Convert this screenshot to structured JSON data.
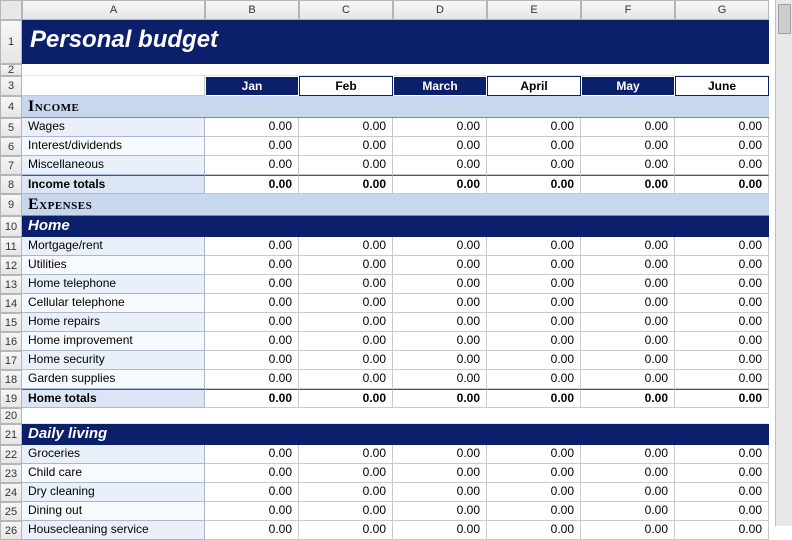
{
  "title": "Personal budget",
  "columns_letters": [
    "A",
    "B",
    "C",
    "D",
    "E",
    "F",
    "G"
  ],
  "months": [
    "Jan",
    "Feb",
    "March",
    "April",
    "May",
    "June"
  ],
  "month_alt_pattern": [
    false,
    true,
    false,
    true,
    false,
    true
  ],
  "colors": {
    "dark_blue": "#0b1f6b",
    "section_blue": "#c7d7ee",
    "label_odd": "#eaf0fa",
    "label_even": "#f6f9fe"
  },
  "sections": {
    "income": {
      "header": "Income",
      "rows": [
        {
          "n": 5,
          "label": "Wages",
          "vals": [
            "0.00",
            "0.00",
            "0.00",
            "0.00",
            "0.00",
            "0.00"
          ]
        },
        {
          "n": 6,
          "label": "Interest/dividends",
          "vals": [
            "0.00",
            "0.00",
            "0.00",
            "0.00",
            "0.00",
            "0.00"
          ]
        },
        {
          "n": 7,
          "label": "Miscellaneous",
          "vals": [
            "0.00",
            "0.00",
            "0.00",
            "0.00",
            "0.00",
            "0.00"
          ]
        }
      ],
      "total": {
        "n": 8,
        "label": "Income totals",
        "vals": [
          "0.00",
          "0.00",
          "0.00",
          "0.00",
          "0.00",
          "0.00"
        ]
      }
    },
    "expenses_header": "Expenses",
    "home": {
      "header": "Home",
      "rows": [
        {
          "n": 11,
          "label": "Mortgage/rent",
          "vals": [
            "0.00",
            "0.00",
            "0.00",
            "0.00",
            "0.00",
            "0.00"
          ]
        },
        {
          "n": 12,
          "label": "Utilities",
          "vals": [
            "0.00",
            "0.00",
            "0.00",
            "0.00",
            "0.00",
            "0.00"
          ]
        },
        {
          "n": 13,
          "label": "Home telephone",
          "vals": [
            "0.00",
            "0.00",
            "0.00",
            "0.00",
            "0.00",
            "0.00"
          ]
        },
        {
          "n": 14,
          "label": "Cellular telephone",
          "vals": [
            "0.00",
            "0.00",
            "0.00",
            "0.00",
            "0.00",
            "0.00"
          ]
        },
        {
          "n": 15,
          "label": "Home repairs",
          "vals": [
            "0.00",
            "0.00",
            "0.00",
            "0.00",
            "0.00",
            "0.00"
          ]
        },
        {
          "n": 16,
          "label": "Home improvement",
          "vals": [
            "0.00",
            "0.00",
            "0.00",
            "0.00",
            "0.00",
            "0.00"
          ]
        },
        {
          "n": 17,
          "label": "Home security",
          "vals": [
            "0.00",
            "0.00",
            "0.00",
            "0.00",
            "0.00",
            "0.00"
          ]
        },
        {
          "n": 18,
          "label": "Garden supplies",
          "vals": [
            "0.00",
            "0.00",
            "0.00",
            "0.00",
            "0.00",
            "0.00"
          ]
        }
      ],
      "total": {
        "n": 19,
        "label": "Home totals",
        "vals": [
          "0.00",
          "0.00",
          "0.00",
          "0.00",
          "0.00",
          "0.00"
        ]
      }
    },
    "daily": {
      "header": "Daily living",
      "rows": [
        {
          "n": 22,
          "label": "Groceries",
          "vals": [
            "0.00",
            "0.00",
            "0.00",
            "0.00",
            "0.00",
            "0.00"
          ]
        },
        {
          "n": 23,
          "label": "Child care",
          "vals": [
            "0.00",
            "0.00",
            "0.00",
            "0.00",
            "0.00",
            "0.00"
          ]
        },
        {
          "n": 24,
          "label": "Dry cleaning",
          "vals": [
            "0.00",
            "0.00",
            "0.00",
            "0.00",
            "0.00",
            "0.00"
          ]
        },
        {
          "n": 25,
          "label": "Dining out",
          "vals": [
            "0.00",
            "0.00",
            "0.00",
            "0.00",
            "0.00",
            "0.00"
          ]
        },
        {
          "n": 26,
          "label": "Housecleaning service",
          "vals": [
            "0.00",
            "0.00",
            "0.00",
            "0.00",
            "0.00",
            "0.00"
          ]
        }
      ]
    }
  },
  "row_numbers_visible": [
    1,
    2,
    3,
    4,
    5,
    6,
    7,
    8,
    9,
    10,
    11,
    12,
    13,
    14,
    15,
    16,
    17,
    18,
    19,
    20,
    21,
    22,
    23,
    24,
    25,
    26
  ]
}
